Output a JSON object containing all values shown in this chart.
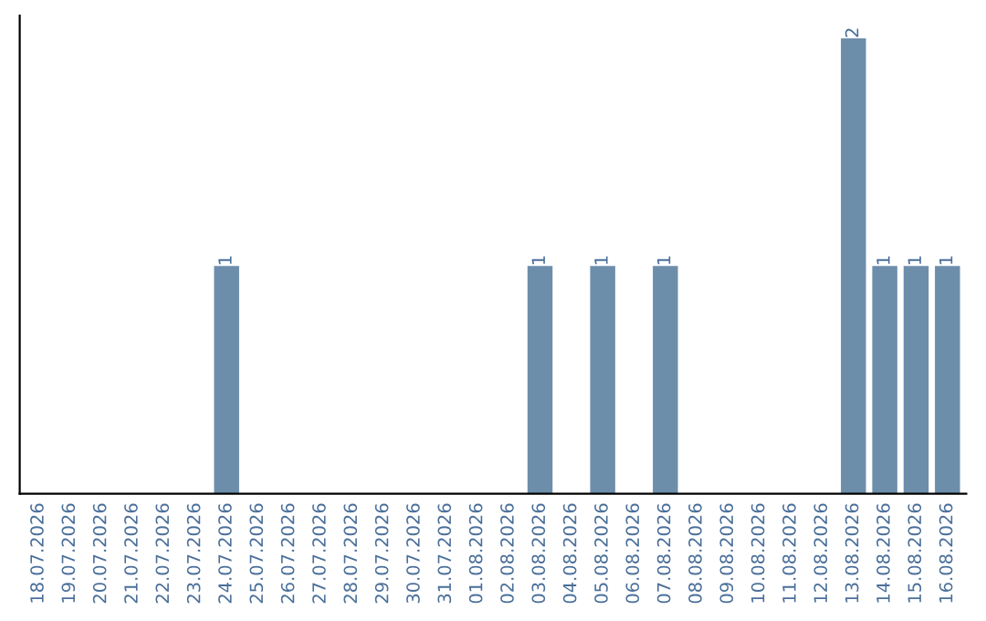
{
  "chart_data": {
    "type": "bar",
    "categories": [
      "18.07.2026",
      "19.07.2026",
      "20.07.2026",
      "21.07.2026",
      "22.07.2026",
      "23.07.2026",
      "24.07.2026",
      "25.07.2026",
      "26.07.2026",
      "27.07.2026",
      "28.07.2026",
      "29.07.2026",
      "30.07.2026",
      "31.07.2026",
      "01.08.2026",
      "02.08.2026",
      "03.08.2026",
      "04.08.2026",
      "05.08.2026",
      "06.08.2026",
      "07.08.2026",
      "08.08.2026",
      "09.08.2026",
      "10.08.2026",
      "11.08.2026",
      "12.08.2026",
      "13.08.2026",
      "14.08.2026",
      "15.08.2026",
      "16.08.2026"
    ],
    "values": [
      0,
      0,
      0,
      0,
      0,
      0,
      1,
      0,
      0,
      0,
      0,
      0,
      0,
      0,
      0,
      0,
      1,
      0,
      1,
      0,
      1,
      0,
      0,
      0,
      0,
      0,
      2,
      1,
      1,
      1
    ],
    "value_labels": [
      null,
      null,
      null,
      null,
      null,
      null,
      "1",
      null,
      null,
      null,
      null,
      null,
      null,
      null,
      null,
      null,
      "1",
      null,
      "1",
      null,
      "1",
      null,
      null,
      null,
      null,
      null,
      "2",
      "1",
      "1",
      "1"
    ],
    "color": "#6d8eab",
    "tick_labels": "x",
    "grid": false,
    "legend": false
  }
}
